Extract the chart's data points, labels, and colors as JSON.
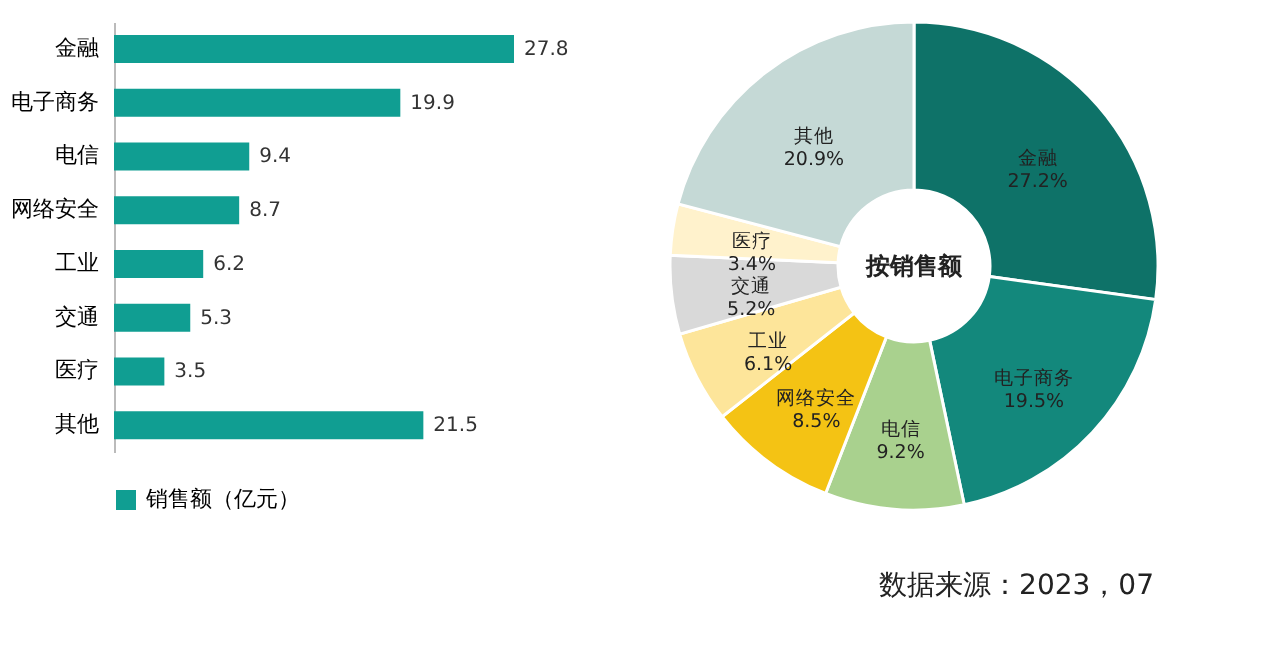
{
  "chart_data": [
    {
      "type": "bar",
      "orientation": "horizontal",
      "categories": [
        "金融",
        "电子商务",
        "电信",
        "网络安全",
        "工业",
        "交通",
        "医疗",
        "其他"
      ],
      "series": [
        {
          "name": "销售额（亿元）",
          "color": "#109e92",
          "values": [
            27.8,
            19.9,
            9.4,
            8.7,
            6.2,
            5.3,
            3.5,
            21.5
          ]
        }
      ],
      "data_labels": true,
      "legend": "bottom",
      "grid": false
    },
    {
      "type": "donut",
      "categories": [
        "金融",
        "电子商务",
        "电信",
        "网络安全",
        "工业",
        "交通",
        "医疗",
        "其他"
      ],
      "values": [
        27.2,
        19.5,
        9.2,
        8.5,
        6.1,
        5.2,
        3.4,
        20.9
      ],
      "colors": [
        "#0e7268",
        "#13887c",
        "#a9d18e",
        "#f4c314",
        "#fde59a",
        "#d9d9d9",
        "#fff2cc",
        "#c5d9d6"
      ],
      "value_labels": [
        "27.2%",
        "19.5%",
        "9.2%",
        "8.5%",
        "6.1%",
        "5.2%",
        "3.4%",
        "20.9%"
      ],
      "annotations": [
        "按销售额",
        "数据来源：2023，07"
      ]
    }
  ]
}
